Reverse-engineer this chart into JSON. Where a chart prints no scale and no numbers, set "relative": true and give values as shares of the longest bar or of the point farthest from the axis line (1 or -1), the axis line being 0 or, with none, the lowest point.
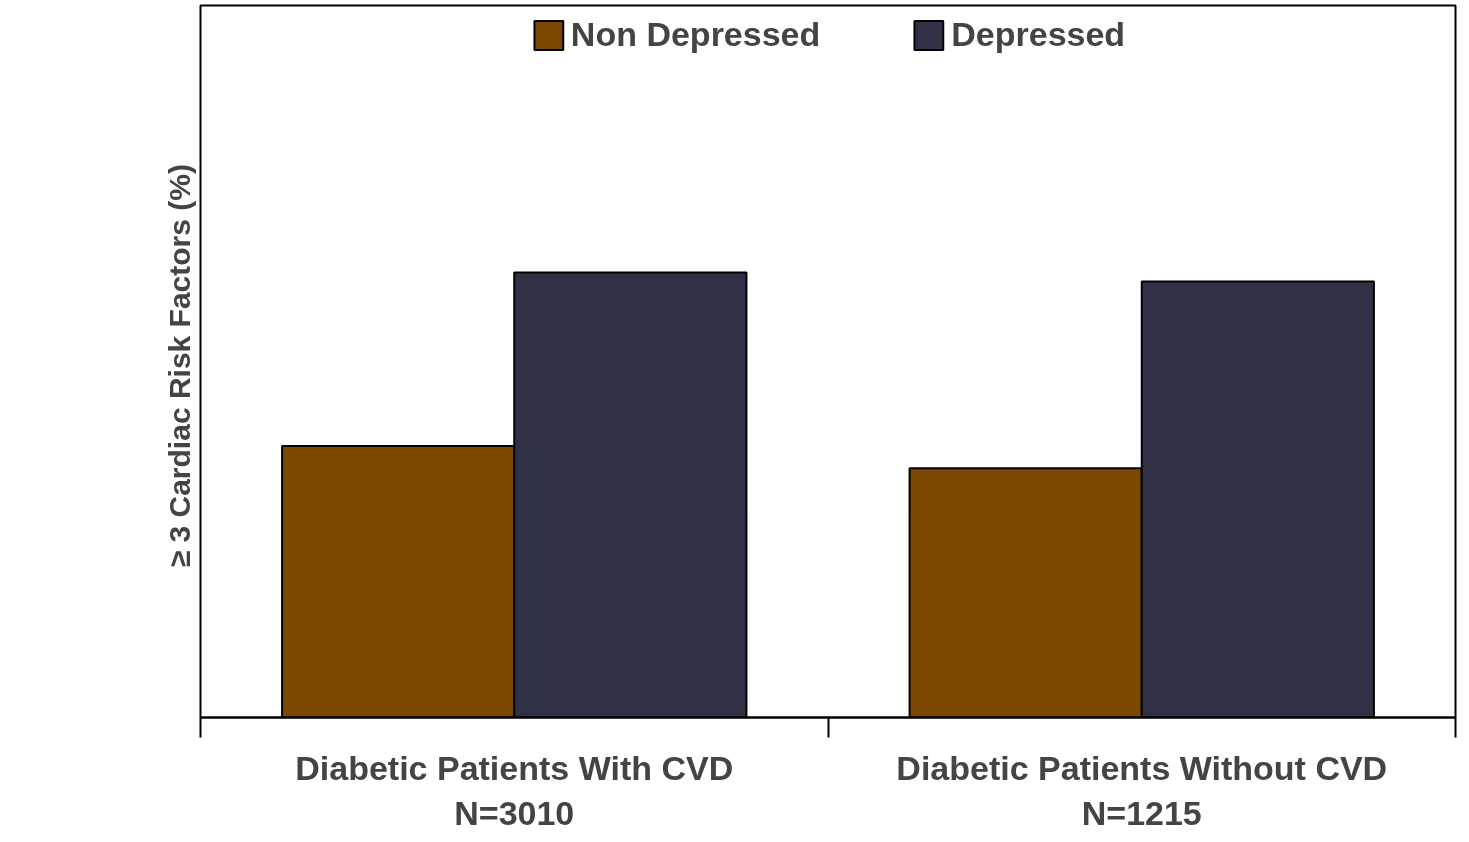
{
  "chart_data": {
    "type": "bar",
    "relative": true,
    "ylabel": "≥ 3 Cardiac Risk Factors  (%)",
    "categories": [
      "Diabetic Patients With CVD\nN=3010",
      "Diabetic Patients Without CVD\nN=1215"
    ],
    "series": [
      {
        "name": "Non Depressed",
        "color": "#7a4800",
        "values": [
          0.61,
          0.56
        ]
      },
      {
        "name": "Depressed",
        "color": "#303047",
        "values": [
          1,
          0.98
        ]
      }
    ],
    "legend": "top",
    "grid": false
  }
}
